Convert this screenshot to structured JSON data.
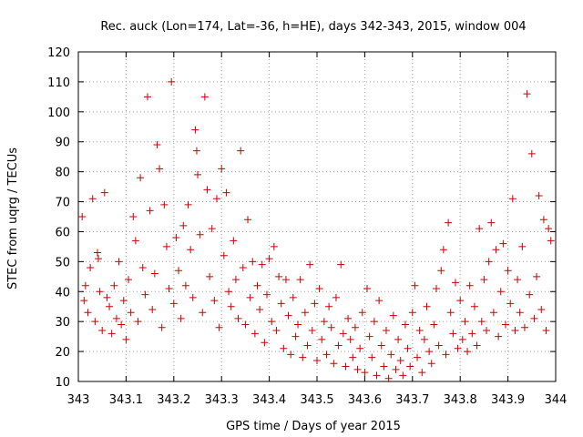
{
  "chart_data": {
    "type": "scatter",
    "title": "Rec. auck (Lon=174, Lat=-36, h=HE), days 342-343, 2015, window 004",
    "xlabel": "GPS time / Days of year 2015",
    "ylabel": "STEC from uqrg / TECUs",
    "xlim": [
      343,
      344
    ],
    "ylim": [
      10,
      120
    ],
    "xticks": [
      343,
      343.1,
      343.2,
      343.3,
      343.4,
      343.5,
      343.6,
      343.7,
      343.8,
      343.9,
      344
    ],
    "xtick_labels": [
      "343",
      "343.1",
      "343.2",
      "343.3",
      "343.4",
      "343.5",
      "343.6",
      "343.7",
      "343.8",
      "343.9",
      "344"
    ],
    "yticks": [
      10,
      20,
      30,
      40,
      50,
      60,
      70,
      80,
      90,
      100,
      110,
      120
    ],
    "ytick_labels": [
      "10",
      "20",
      "30",
      "40",
      "50",
      "60",
      "70",
      "80",
      "90",
      "100",
      "110",
      "120"
    ],
    "grid": true,
    "marker": "plus",
    "color": "#cc0000",
    "points": [
      [
        343.008,
        65
      ],
      [
        343.012,
        37
      ],
      [
        343.015,
        42
      ],
      [
        343.02,
        33
      ],
      [
        343.025,
        48
      ],
      [
        343.03,
        71
      ],
      [
        343.035,
        30
      ],
      [
        343.04,
        53
      ],
      [
        343.042,
        51
      ],
      [
        343.045,
        40
      ],
      [
        343.05,
        27
      ],
      [
        343.055,
        73
      ],
      [
        343.06,
        38
      ],
      [
        343.065,
        35
      ],
      [
        343.07,
        26
      ],
      [
        343.075,
        42
      ],
      [
        343.08,
        31
      ],
      [
        343.085,
        50
      ],
      [
        343.09,
        29
      ],
      [
        343.095,
        37
      ],
      [
        343.1,
        24
      ],
      [
        343.105,
        44
      ],
      [
        343.11,
        33
      ],
      [
        343.115,
        65
      ],
      [
        343.12,
        57
      ],
      [
        343.125,
        30
      ],
      [
        343.13,
        78
      ],
      [
        343.135,
        48
      ],
      [
        343.14,
        39
      ],
      [
        343.145,
        105
      ],
      [
        343.15,
        67
      ],
      [
        343.155,
        34
      ],
      [
        343.16,
        46
      ],
      [
        343.165,
        89
      ],
      [
        343.17,
        81
      ],
      [
        343.175,
        28
      ],
      [
        343.18,
        69
      ],
      [
        343.185,
        55
      ],
      [
        343.19,
        41
      ],
      [
        343.195,
        110
      ],
      [
        343.2,
        36
      ],
      [
        343.205,
        58
      ],
      [
        343.21,
        47
      ],
      [
        343.215,
        31
      ],
      [
        343.22,
        62
      ],
      [
        343.225,
        42
      ],
      [
        343.23,
        69
      ],
      [
        343.235,
        54
      ],
      [
        343.24,
        38
      ],
      [
        343.245,
        94
      ],
      [
        343.248,
        87
      ],
      [
        343.25,
        79
      ],
      [
        343.255,
        59
      ],
      [
        343.26,
        33
      ],
      [
        343.265,
        105
      ],
      [
        343.27,
        74
      ],
      [
        343.275,
        45
      ],
      [
        343.28,
        61
      ],
      [
        343.285,
        37
      ],
      [
        343.29,
        71
      ],
      [
        343.295,
        28
      ],
      [
        343.3,
        81
      ],
      [
        343.305,
        52
      ],
      [
        343.31,
        73
      ],
      [
        343.315,
        40
      ],
      [
        343.32,
        35
      ],
      [
        343.325,
        57
      ],
      [
        343.33,
        44
      ],
      [
        343.335,
        31
      ],
      [
        343.34,
        87
      ],
      [
        343.345,
        48
      ],
      [
        343.35,
        29
      ],
      [
        343.355,
        64
      ],
      [
        343.36,
        38
      ],
      [
        343.365,
        50
      ],
      [
        343.37,
        26
      ],
      [
        343.375,
        42
      ],
      [
        343.38,
        34
      ],
      [
        343.385,
        49
      ],
      [
        343.39,
        23
      ],
      [
        343.395,
        39
      ],
      [
        343.4,
        51
      ],
      [
        343.405,
        30
      ],
      [
        343.41,
        55
      ],
      [
        343.415,
        27
      ],
      [
        343.42,
        45
      ],
      [
        343.425,
        36
      ],
      [
        343.43,
        21
      ],
      [
        343.435,
        44
      ],
      [
        343.44,
        32
      ],
      [
        343.445,
        19
      ],
      [
        343.45,
        38
      ],
      [
        343.455,
        25
      ],
      [
        343.46,
        29
      ],
      [
        343.465,
        44
      ],
      [
        343.47,
        18
      ],
      [
        343.475,
        33
      ],
      [
        343.48,
        22
      ],
      [
        343.485,
        49
      ],
      [
        343.49,
        27
      ],
      [
        343.495,
        36
      ],
      [
        343.5,
        17
      ],
      [
        343.505,
        41
      ],
      [
        343.51,
        24
      ],
      [
        343.515,
        30
      ],
      [
        343.52,
        19
      ],
      [
        343.525,
        35
      ],
      [
        343.53,
        28
      ],
      [
        343.535,
        16
      ],
      [
        343.54,
        38
      ],
      [
        343.545,
        22
      ],
      [
        343.55,
        49
      ],
      [
        343.555,
        26
      ],
      [
        343.56,
        15
      ],
      [
        343.565,
        31
      ],
      [
        343.57,
        24
      ],
      [
        343.575,
        18
      ],
      [
        343.58,
        28
      ],
      [
        343.585,
        14
      ],
      [
        343.59,
        21
      ],
      [
        343.595,
        33
      ],
      [
        343.6,
        13
      ],
      [
        343.605,
        41
      ],
      [
        343.61,
        25
      ],
      [
        343.615,
        18
      ],
      [
        343.62,
        30
      ],
      [
        343.625,
        12
      ],
      [
        343.63,
        37
      ],
      [
        343.635,
        22
      ],
      [
        343.64,
        15
      ],
      [
        343.645,
        27
      ],
      [
        343.65,
        11
      ],
      [
        343.655,
        19
      ],
      [
        343.66,
        32
      ],
      [
        343.665,
        14
      ],
      [
        343.67,
        24
      ],
      [
        343.675,
        17
      ],
      [
        343.68,
        12
      ],
      [
        343.685,
        29
      ],
      [
        343.69,
        21
      ],
      [
        343.695,
        15
      ],
      [
        343.7,
        33
      ],
      [
        343.705,
        42
      ],
      [
        343.71,
        18
      ],
      [
        343.715,
        27
      ],
      [
        343.72,
        13
      ],
      [
        343.725,
        24
      ],
      [
        343.73,
        35
      ],
      [
        343.735,
        20
      ],
      [
        343.74,
        16
      ],
      [
        343.745,
        29
      ],
      [
        343.75,
        41
      ],
      [
        343.755,
        22
      ],
      [
        343.76,
        47
      ],
      [
        343.765,
        54
      ],
      [
        343.77,
        19
      ],
      [
        343.775,
        63
      ],
      [
        343.78,
        33
      ],
      [
        343.785,
        26
      ],
      [
        343.79,
        43
      ],
      [
        343.795,
        21
      ],
      [
        343.8,
        37
      ],
      [
        343.805,
        24
      ],
      [
        343.81,
        30
      ],
      [
        343.815,
        20
      ],
      [
        343.82,
        42
      ],
      [
        343.825,
        26
      ],
      [
        343.83,
        35
      ],
      [
        343.835,
        22
      ],
      [
        343.84,
        61
      ],
      [
        343.845,
        30
      ],
      [
        343.85,
        44
      ],
      [
        343.855,
        27
      ],
      [
        343.86,
        50
      ],
      [
        343.865,
        63
      ],
      [
        343.87,
        33
      ],
      [
        343.875,
        54
      ],
      [
        343.88,
        25
      ],
      [
        343.885,
        40
      ],
      [
        343.89,
        56
      ],
      [
        343.895,
        29
      ],
      [
        343.9,
        47
      ],
      [
        343.905,
        36
      ],
      [
        343.91,
        71
      ],
      [
        343.915,
        27
      ],
      [
        343.92,
        44
      ],
      [
        343.925,
        33
      ],
      [
        343.93,
        55
      ],
      [
        343.935,
        28
      ],
      [
        343.94,
        106
      ],
      [
        343.945,
        39
      ],
      [
        343.95,
        86
      ],
      [
        343.955,
        31
      ],
      [
        343.96,
        45
      ],
      [
        343.965,
        72
      ],
      [
        343.97,
        34
      ],
      [
        343.975,
        64
      ],
      [
        343.98,
        27
      ],
      [
        343.985,
        61
      ],
      [
        343.99,
        57
      ]
    ]
  }
}
